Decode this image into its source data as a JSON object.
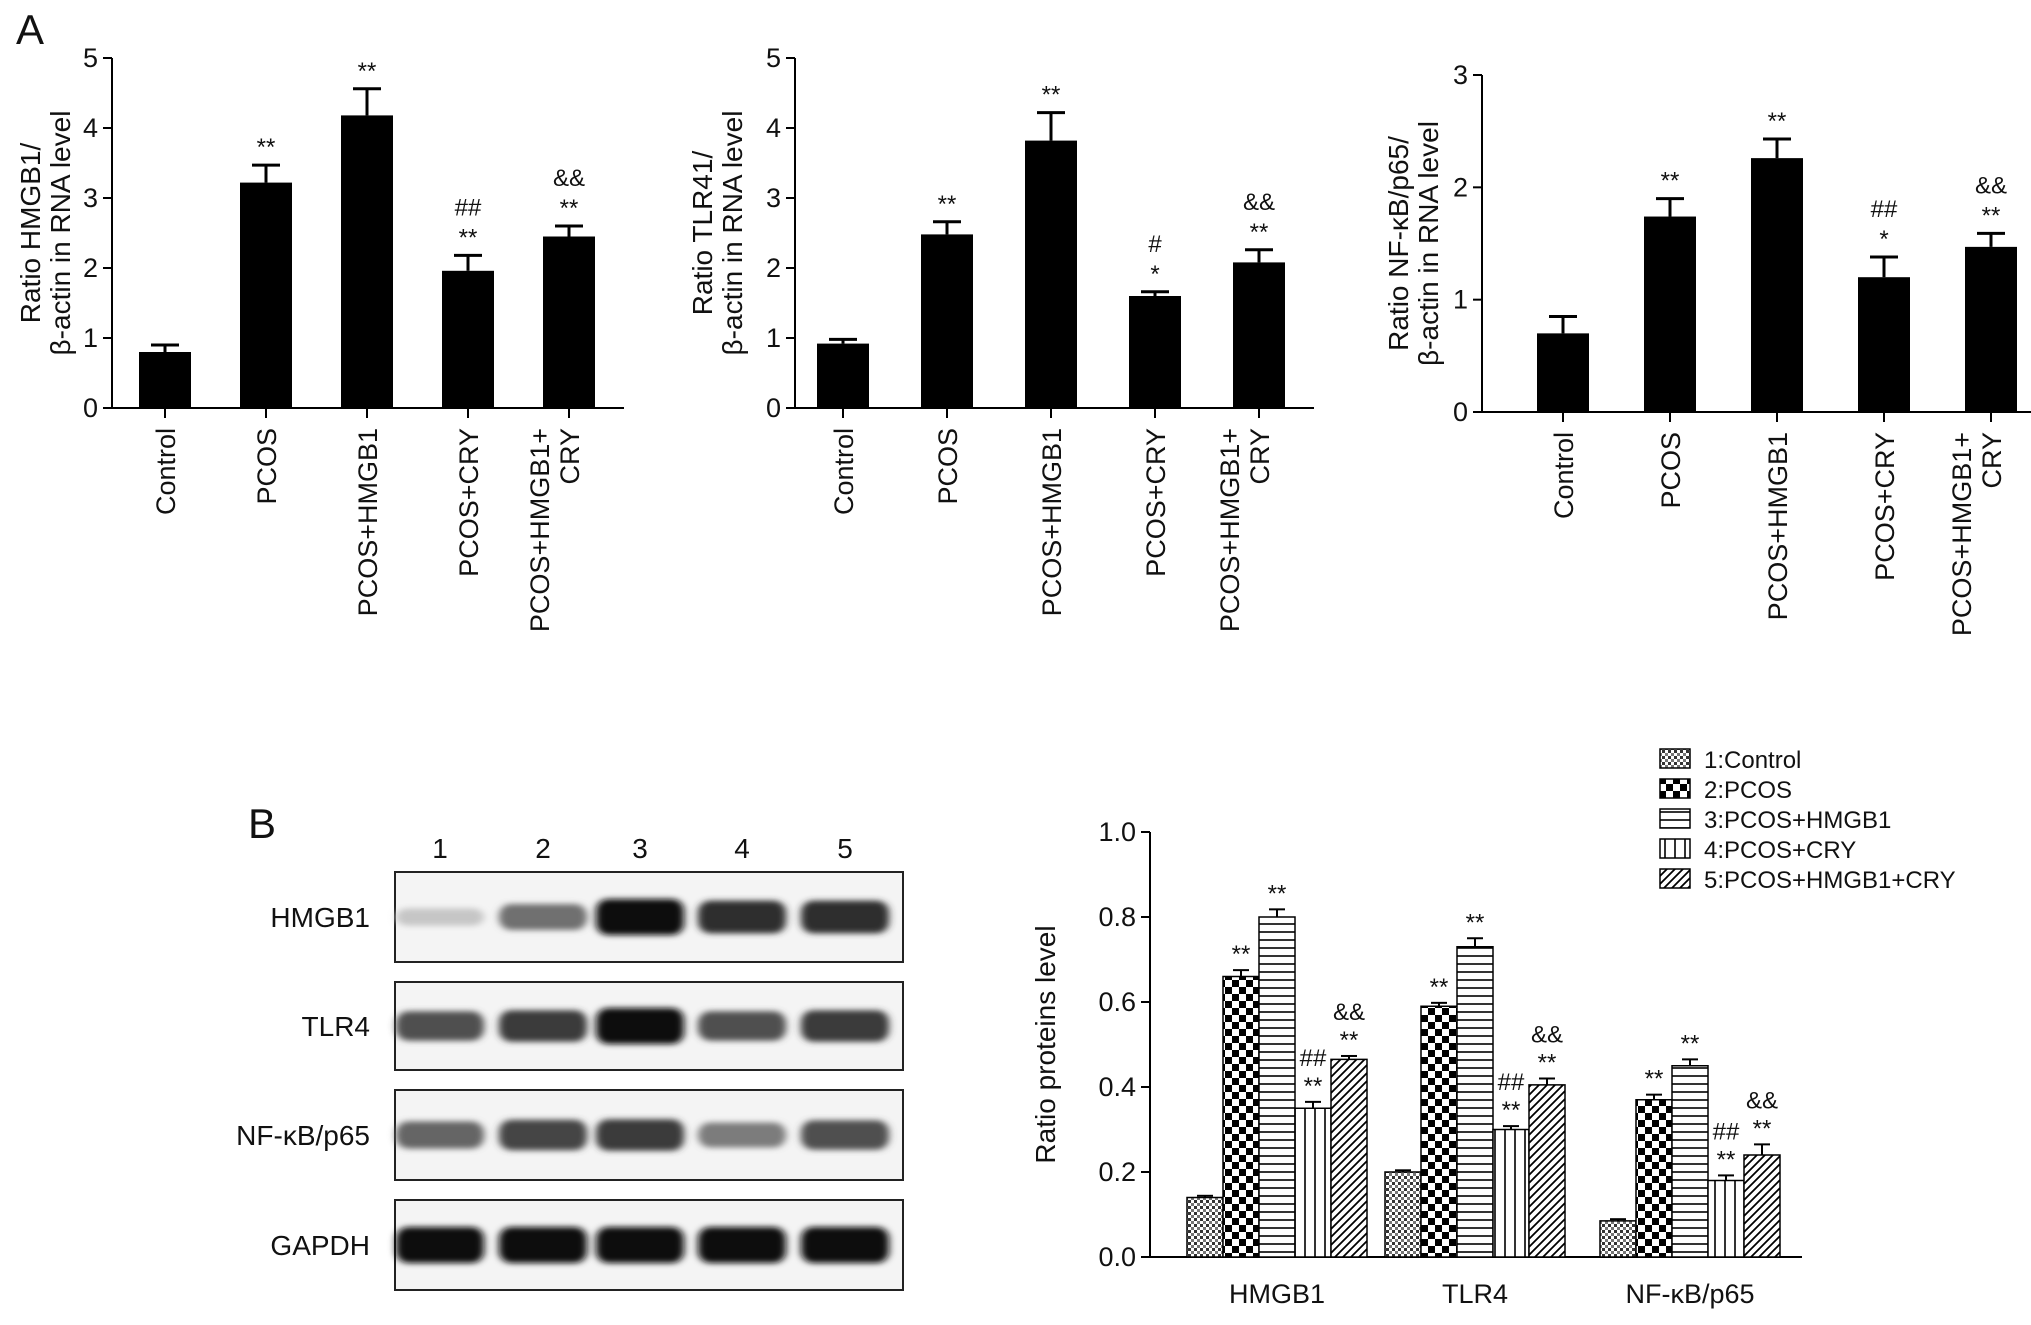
{
  "panel_a_label": "A",
  "panel_b_label": "B",
  "chart_data": [
    {
      "type": "bar",
      "panel": "A",
      "ylabel": [
        "Ratio HMGB1/",
        "β-actin in RNA level"
      ],
      "ylim": [
        0,
        5
      ],
      "yticks": [
        0,
        1,
        2,
        3,
        4,
        5
      ],
      "categories": [
        [
          "Control"
        ],
        [
          "PCOS"
        ],
        [
          "PCOS+HMGB1"
        ],
        [
          "PCOS+CRY"
        ],
        [
          "PCOS+HMGB1+",
          "CRY"
        ]
      ],
      "values": [
        0.8,
        3.22,
        4.18,
        1.96,
        2.45
      ],
      "errors": [
        0.1,
        0.25,
        0.38,
        0.22,
        0.15
      ],
      "annotations": [
        [],
        [
          "**"
        ],
        [
          "**"
        ],
        [
          "##",
          "**"
        ],
        [
          "&&",
          "**"
        ]
      ],
      "color": "#000000"
    },
    {
      "type": "bar",
      "panel": "A",
      "ylabel": [
        "Ratio TLR41/",
        "β-actin in RNA level"
      ],
      "ylim": [
        0,
        5
      ],
      "yticks": [
        0,
        1,
        2,
        3,
        4,
        5
      ],
      "categories": [
        [
          "Control"
        ],
        [
          "PCOS"
        ],
        [
          "PCOS+HMGB1"
        ],
        [
          "PCOS+CRY"
        ],
        [
          "PCOS+HMGB1+",
          "CRY"
        ]
      ],
      "values": [
        0.92,
        2.48,
        3.82,
        1.6,
        2.08
      ],
      "errors": [
        0.06,
        0.18,
        0.4,
        0.06,
        0.18
      ],
      "annotations": [
        [],
        [
          "**"
        ],
        [
          "**"
        ],
        [
          "#",
          "*"
        ],
        [
          "&&",
          "**"
        ]
      ],
      "color": "#000000"
    },
    {
      "type": "bar",
      "panel": "A",
      "ylabel": [
        "Ratio  NF-κB/p65/",
        "β-actin in RNA level"
      ],
      "ylim": [
        0,
        3
      ],
      "yticks": [
        0,
        1,
        2,
        3
      ],
      "categories": [
        [
          "Control"
        ],
        [
          "PCOS"
        ],
        [
          "PCOS+HMGB1"
        ],
        [
          "PCOS+CRY"
        ],
        [
          "PCOS+HMGB1+",
          "CRY"
        ]
      ],
      "values": [
        0.7,
        1.74,
        2.26,
        1.2,
        1.47
      ],
      "errors": [
        0.15,
        0.16,
        0.17,
        0.18,
        0.12
      ],
      "annotations": [
        [],
        [
          "**"
        ],
        [
          "**"
        ],
        [
          "##",
          "*"
        ],
        [
          "&&",
          "**"
        ]
      ],
      "color": "#000000"
    },
    {
      "type": "bar",
      "panel": "B",
      "ylabel": "Ratio proteins level",
      "ylim": [
        0,
        1.0
      ],
      "yticks": [
        "0.0",
        "0.2",
        "0.4",
        "0.6",
        "0.8",
        "1.0"
      ],
      "categories": [
        "HMGB1",
        "TLR4",
        "NF-κB/p65"
      ],
      "legend_position": "top-right",
      "series": [
        {
          "name": "1:Control",
          "pattern": "dots",
          "values": [
            0.14,
            0.2,
            0.085
          ],
          "errors": [
            0.004,
            0.004,
            0.004
          ],
          "annotations": [
            [],
            [],
            []
          ]
        },
        {
          "name": "2:PCOS",
          "pattern": "checker",
          "values": [
            0.66,
            0.59,
            0.37
          ],
          "errors": [
            0.015,
            0.008,
            0.012
          ],
          "annotations": [
            [
              "**"
            ],
            [
              "**"
            ],
            [
              "**"
            ]
          ]
        },
        {
          "name": "3:PCOS+HMGB1",
          "pattern": "hlines",
          "values": [
            0.8,
            0.73,
            0.45
          ],
          "errors": [
            0.018,
            0.02,
            0.015
          ],
          "annotations": [
            [
              "**"
            ],
            [
              "**"
            ],
            [
              "**"
            ]
          ]
        },
        {
          "name": "4:PCOS+CRY",
          "pattern": "vlines",
          "values": [
            0.35,
            0.3,
            0.18
          ],
          "errors": [
            0.015,
            0.008,
            0.012
          ],
          "annotations": [
            [
              "##",
              "**"
            ],
            [
              "##",
              "**"
            ],
            [
              "##",
              "**"
            ]
          ]
        },
        {
          "name": "5:PCOS+HMGB1+CRY",
          "pattern": "diag",
          "values": [
            0.465,
            0.405,
            0.24
          ],
          "errors": [
            0.008,
            0.015,
            0.025
          ],
          "annotations": [
            [
              "&&",
              "**"
            ],
            [
              "&&",
              "**"
            ],
            [
              "&&",
              "**"
            ]
          ]
        }
      ]
    }
  ],
  "western_blot": {
    "lane_labels": [
      "1",
      "2",
      "3",
      "4",
      "5"
    ],
    "proteins": [
      {
        "label": "HMGB1",
        "intensity": [
          0.15,
          0.55,
          1.0,
          0.85,
          0.85
        ]
      },
      {
        "label": "TLR4",
        "intensity": [
          0.7,
          0.8,
          1.0,
          0.7,
          0.8
        ]
      },
      {
        "label": "NF-κB/p65",
        "intensity": [
          0.6,
          0.75,
          0.8,
          0.5,
          0.7
        ]
      },
      {
        "label": "GAPDH",
        "intensity": [
          1.0,
          1.0,
          1.0,
          1.0,
          1.0
        ]
      }
    ]
  }
}
